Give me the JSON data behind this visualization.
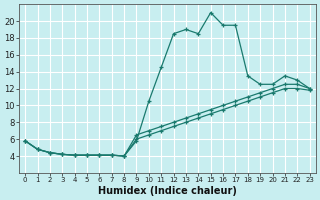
{
  "xlabel": "Humidex (Indice chaleur)",
  "background_color": "#c8eef0",
  "grid_color": "#ffffff",
  "line_color": "#1a7a6e",
  "xlim": [
    -0.5,
    23.5
  ],
  "ylim": [
    2,
    22
  ],
  "xticks": [
    0,
    1,
    2,
    3,
    4,
    5,
    6,
    7,
    8,
    9,
    10,
    11,
    12,
    13,
    14,
    15,
    16,
    17,
    18,
    19,
    20,
    21,
    22,
    23
  ],
  "yticks": [
    4,
    6,
    8,
    10,
    12,
    14,
    16,
    18,
    20
  ],
  "line1": [
    5.8,
    4.8,
    4.4,
    4.2,
    4.1,
    4.1,
    4.1,
    4.1,
    4.0,
    5.8,
    10.5,
    14.5,
    18.5,
    19.0,
    18.5,
    21.0,
    19.5,
    19.5,
    13.5,
    12.5,
    12.5,
    13.5,
    13.0,
    12.0
  ],
  "line2": [
    5.8,
    4.8,
    4.4,
    4.2,
    4.1,
    4.1,
    4.1,
    4.1,
    4.0,
    6.5,
    7.0,
    7.5,
    8.0,
    8.5,
    9.0,
    9.5,
    10.0,
    10.5,
    11.0,
    11.5,
    12.0,
    12.5,
    12.5,
    12.0
  ],
  "line3": [
    5.8,
    4.8,
    4.4,
    4.2,
    4.1,
    4.1,
    4.1,
    4.1,
    4.0,
    6.0,
    6.5,
    7.0,
    7.5,
    8.0,
    8.5,
    9.0,
    9.5,
    10.0,
    10.5,
    11.0,
    11.5,
    12.0,
    12.0,
    11.8
  ]
}
